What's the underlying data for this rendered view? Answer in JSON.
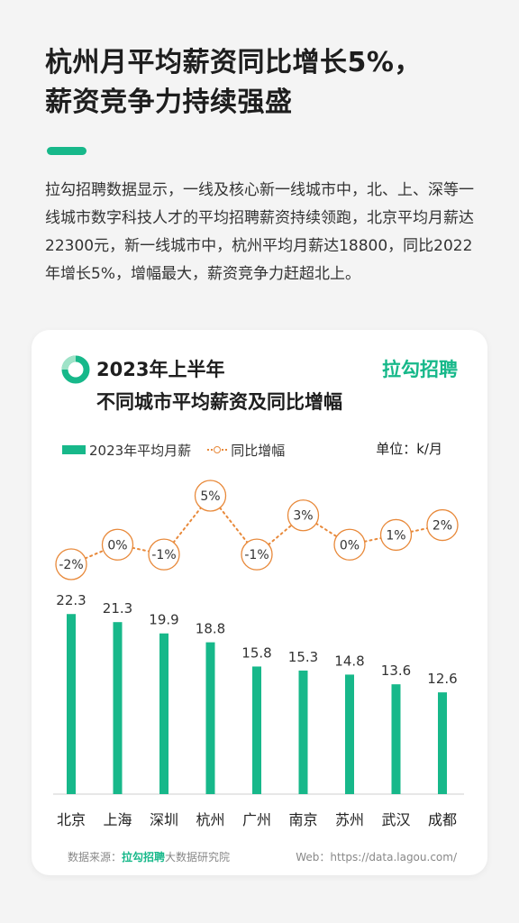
{
  "headline": {
    "line1": "杭州月平均薪资同比增长5%，",
    "line2": "薪资竞争力持续强盛"
  },
  "body_text": "拉勾招聘数据显示，一线及核心新一线城市中，北、上、深等一线城市数字科技人才的平均招聘薪资持续领跑，北京平均月薪达22300元，新一线城市中，杭州平均月薪达18800，同比2022年增长5%，增幅最大，薪资竞争力赶超北上。",
  "colors": {
    "accent": "#17b88a",
    "line": "#e8893a"
  },
  "card": {
    "logo_icon": "lagou-ring-logo",
    "title_line1": "2023年上半年",
    "title_line2": "不同城市平均薪资及同比增幅",
    "brand": "拉勾招聘",
    "unit": "单位：k/月",
    "footer_source_label": "数据来源：",
    "footer_source_brand": "拉勾招聘",
    "footer_source_suffix": "大数据研究院",
    "footer_web": "Web：https://data.lagou.com/"
  },
  "chart_data": {
    "type": "bar",
    "title": "",
    "categories": [
      "北京",
      "上海",
      "深圳",
      "杭州",
      "广州",
      "南京",
      "苏州",
      "武汉",
      "成都"
    ],
    "series": [
      {
        "name": "2023年平均月薪",
        "type": "bar",
        "values": [
          22.3,
          21.3,
          19.9,
          18.8,
          15.8,
          15.3,
          14.8,
          13.6,
          12.6
        ],
        "labels": [
          "22.3",
          "21.3",
          "19.9",
          "18.8",
          "15.8",
          "15.3",
          "14.8",
          "13.6",
          "12.6"
        ]
      },
      {
        "name": "同比增幅",
        "type": "line",
        "values": [
          -2,
          0,
          -1,
          5,
          -1,
          3,
          0,
          1,
          2
        ],
        "labels": [
          "-2%",
          "0%",
          "-1%",
          "5%",
          "-1%",
          "3%",
          "0%",
          "1%",
          "2%"
        ]
      }
    ],
    "ylim_bar": [
      0,
      24
    ],
    "ylim_line": [
      -2,
      5
    ],
    "legend": "top-left",
    "grid": false
  }
}
